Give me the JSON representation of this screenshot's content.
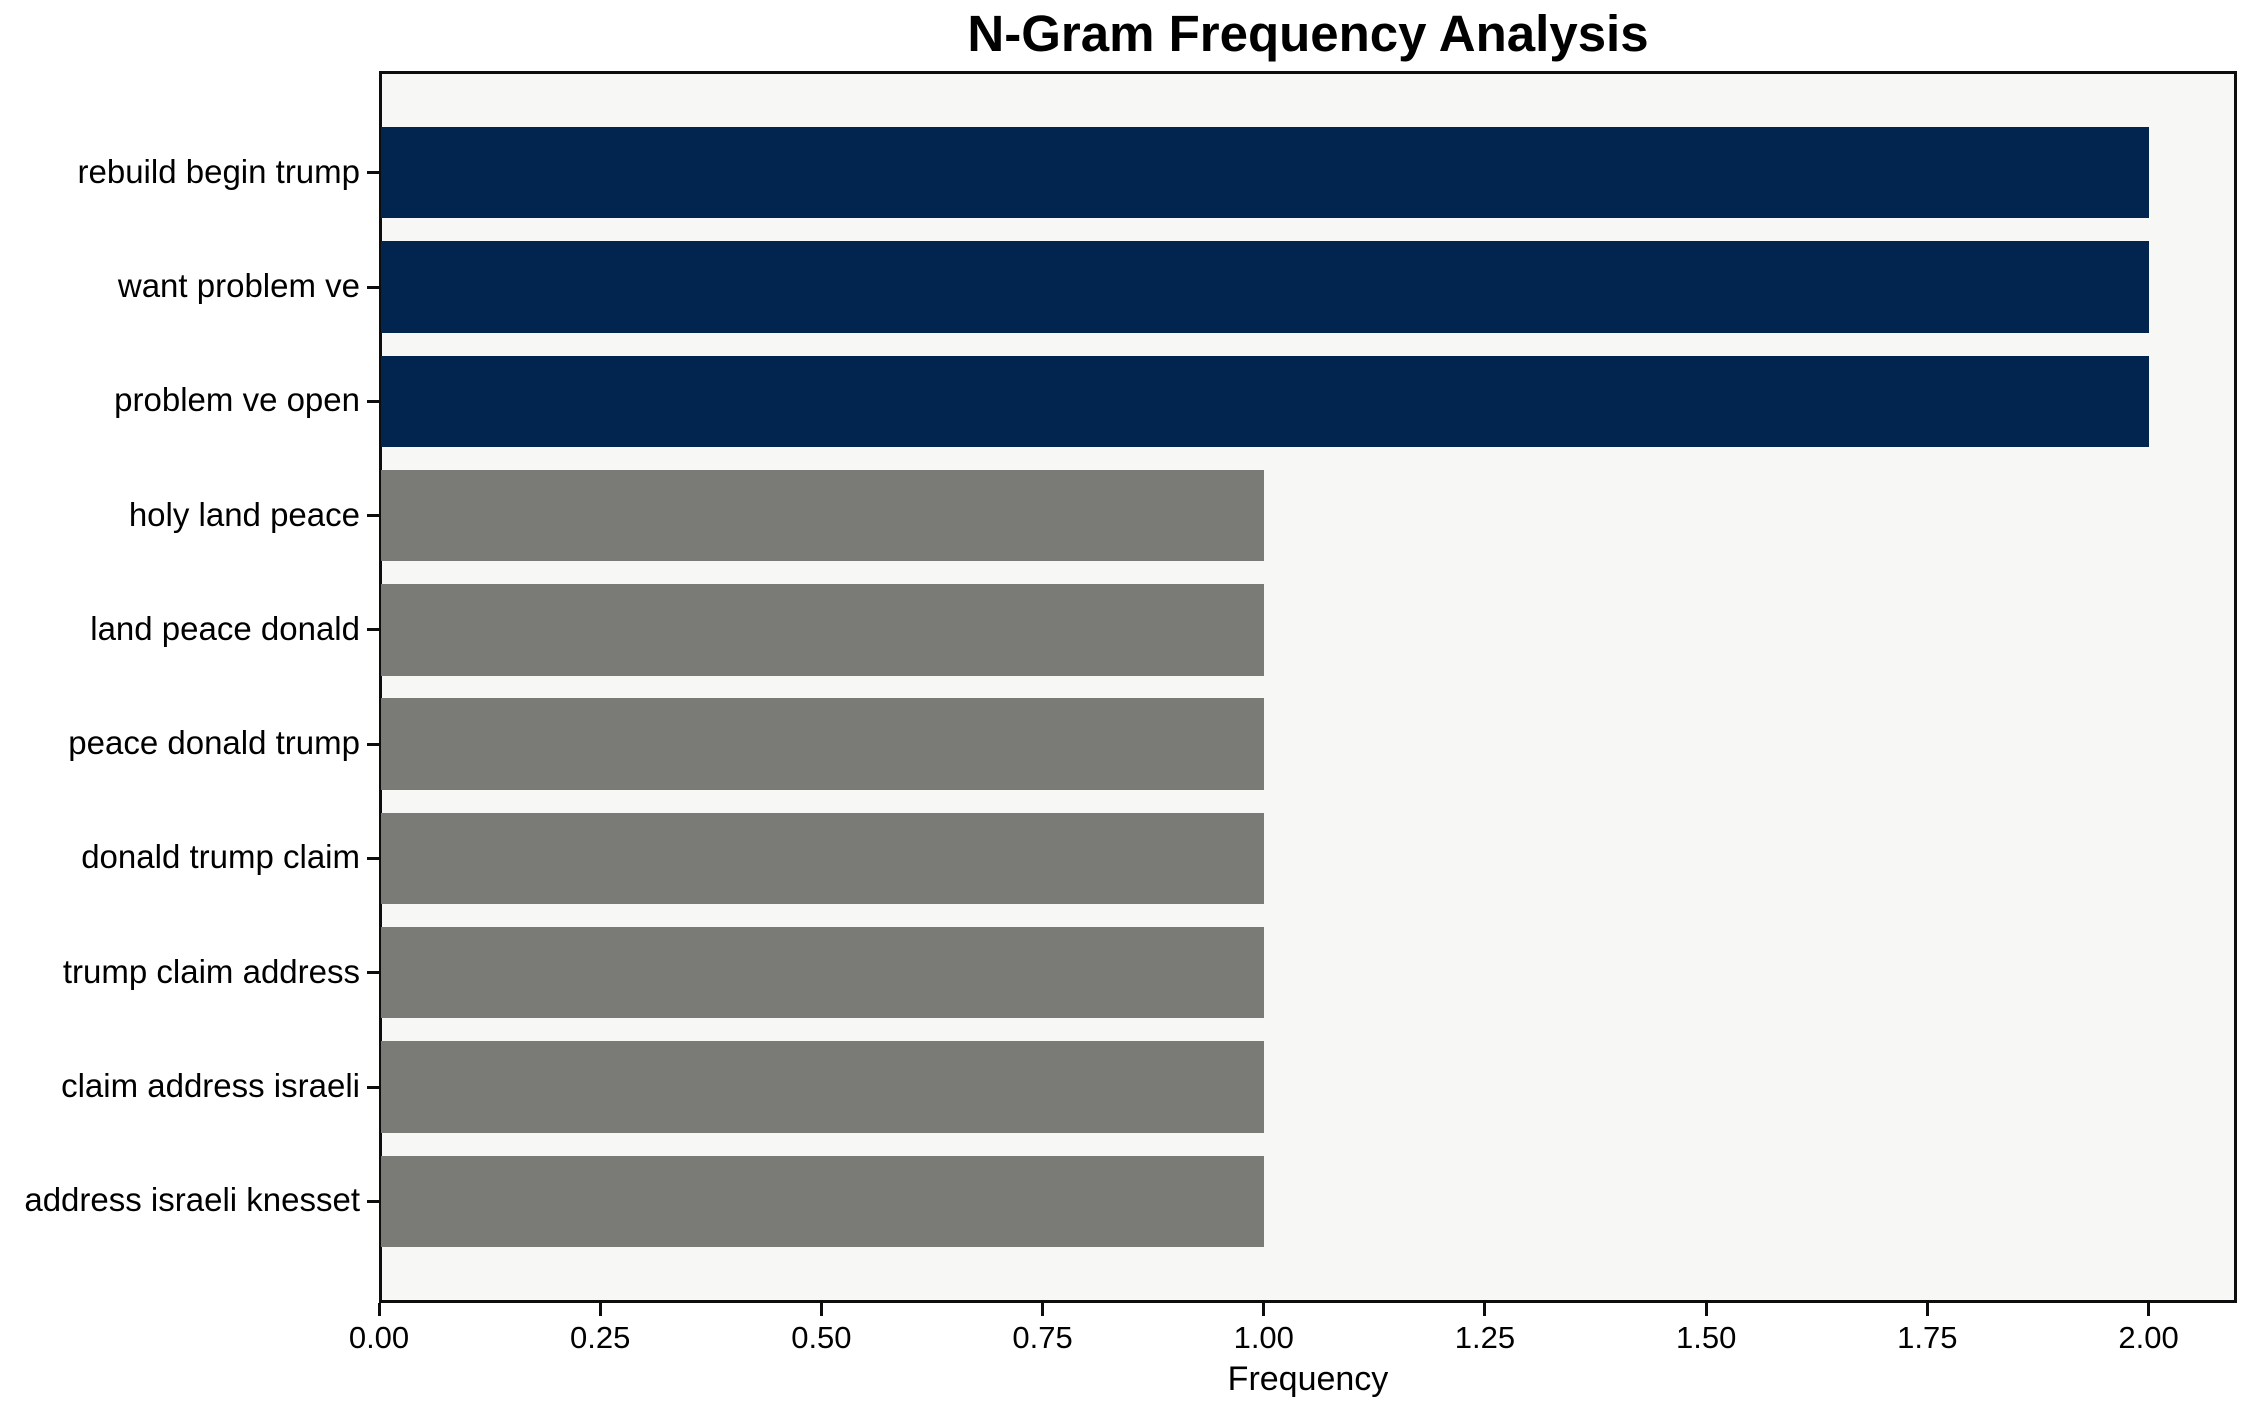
{
  "figure": {
    "title": "N-Gram Frequency Analysis",
    "xlabel": "Frequency"
  },
  "chart_data": {
    "type": "bar",
    "orientation": "horizontal",
    "title": "N-Gram Frequency Analysis",
    "xlabel": "Frequency",
    "ylabel": "",
    "categories": [
      "rebuild begin trump",
      "want problem ve",
      "problem ve open",
      "holy land peace",
      "land peace donald",
      "peace donald trump",
      "donald trump claim",
      "trump claim address",
      "claim address israeli",
      "address israeli knesset"
    ],
    "values": [
      2,
      2,
      2,
      1,
      1,
      1,
      1,
      1,
      1,
      1
    ],
    "bar_colors": [
      "#02254f",
      "#02254f",
      "#02254f",
      "#7a7a77",
      "#7a7a77",
      "#7a7a77",
      "#7a7a77",
      "#7a7a77",
      "#7a7a77",
      "#7a7a77"
    ],
    "xlim": [
      0,
      2.1
    ],
    "xtick_values": [
      0,
      0.25,
      0.5,
      0.75,
      1.0,
      1.25,
      1.5,
      1.75,
      2.0
    ],
    "xtick_labels": [
      "0.00",
      "0.25",
      "0.50",
      "0.75",
      "1.00",
      "1.25",
      "1.50",
      "1.75",
      "2.00"
    ],
    "grid": false,
    "legend": "none",
    "colors": {
      "bar_highlight": "#02254f",
      "bar_default": "#7a7a77",
      "plot_background": "#f7f7f6",
      "figure_background": "#ffffff",
      "frame": "#0d0d0d",
      "text": "#000000"
    }
  }
}
